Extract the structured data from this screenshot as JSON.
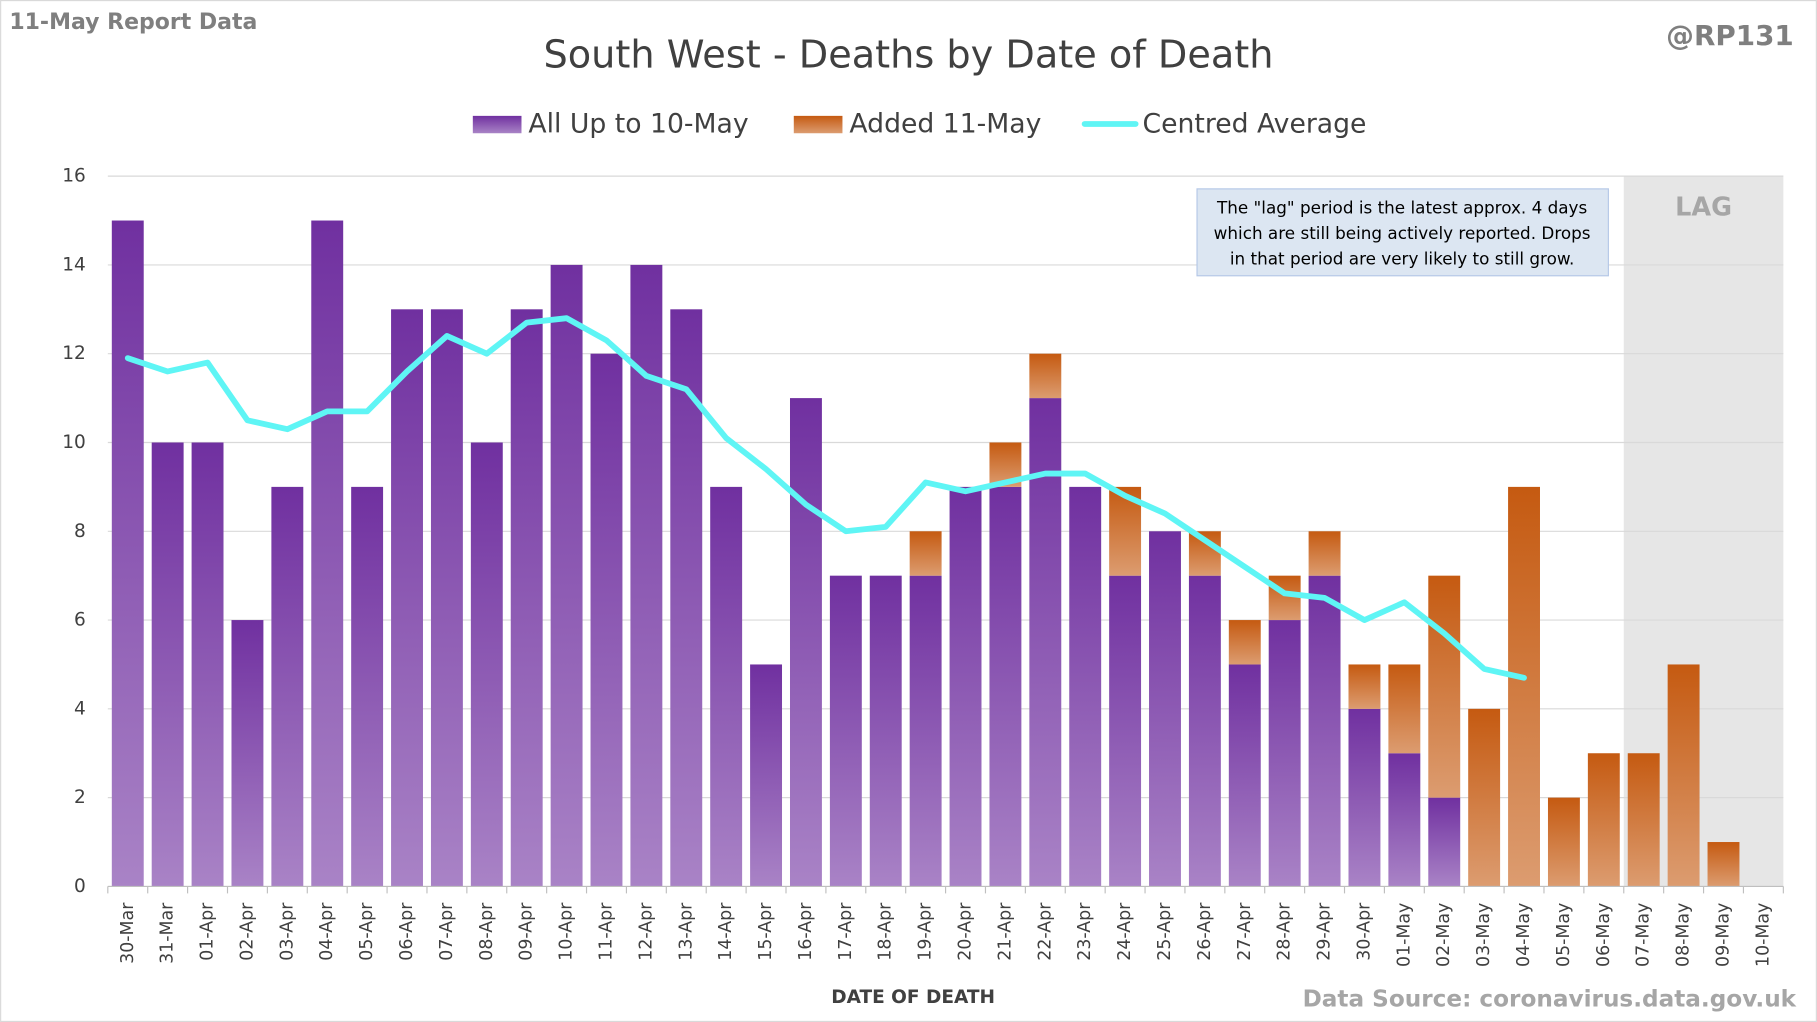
{
  "chart_data": {
    "type": "bar",
    "title": "South West - Deaths by Date of Death",
    "subtitle": "11-May Report Data",
    "handle": "@RP131",
    "source": "Data Source: coronavirus.data.gov.uk",
    "x_label": "DATE OF DEATH",
    "annotation": [
      "The \"lag\" period is the latest approx. 4 days",
      "which are still being actively reported. Drops",
      "in that period are very likely to still grow."
    ],
    "lag": {
      "label": "LAG",
      "from": "07-May"
    },
    "stacked": true,
    "grid": true,
    "categories": [
      "30-Mar",
      "31-Mar",
      "01-Apr",
      "02-Apr",
      "03-Apr",
      "04-Apr",
      "05-Apr",
      "06-Apr",
      "07-Apr",
      "08-Apr",
      "09-Apr",
      "10-Apr",
      "11-Apr",
      "12-Apr",
      "13-Apr",
      "14-Apr",
      "15-Apr",
      "16-Apr",
      "17-Apr",
      "18-Apr",
      "19-Apr",
      "20-Apr",
      "21-Apr",
      "22-Apr",
      "23-Apr",
      "24-Apr",
      "25-Apr",
      "26-Apr",
      "27-Apr",
      "28-Apr",
      "29-Apr",
      "30-Apr",
      "01-May",
      "02-May",
      "03-May",
      "04-May",
      "05-May",
      "06-May",
      "07-May",
      "08-May",
      "09-May",
      "10-May"
    ],
    "series": [
      {
        "name": "All Up to 10-May",
        "color": "#7030a0",
        "values": [
          15,
          10,
          10,
          6,
          9,
          15,
          9,
          13,
          13,
          10,
          13,
          14,
          12,
          14,
          13,
          9,
          5,
          11,
          7,
          7,
          7,
          9,
          9,
          11,
          9,
          7,
          8,
          7,
          5,
          6,
          7,
          4,
          3,
          2,
          0,
          0,
          0,
          0,
          0,
          0,
          0,
          0
        ]
      },
      {
        "name": "Added 11-May",
        "color": "#c55a11",
        "values": [
          0,
          0,
          0,
          0,
          0,
          0,
          0,
          0,
          0,
          0,
          0,
          0,
          0,
          0,
          0,
          0,
          0,
          0,
          0,
          0,
          1,
          0,
          1,
          1,
          0,
          2,
          0,
          1,
          1,
          1,
          1,
          1,
          2,
          5,
          4,
          9,
          2,
          3,
          3,
          5,
          1,
          0
        ]
      },
      {
        "name": "Centred Average",
        "type": "line",
        "color": "#5ff5f5",
        "values": [
          11.9,
          11.6,
          11.8,
          10.5,
          10.3,
          10.7,
          10.7,
          11.6,
          12.4,
          12.0,
          12.7,
          12.8,
          12.3,
          11.5,
          11.2,
          10.1,
          9.4,
          8.6,
          8.0,
          8.1,
          9.1,
          8.9,
          9.1,
          9.3,
          9.3,
          8.8,
          8.4,
          7.8,
          7.2,
          6.6,
          6.5,
          6.0,
          6.4,
          5.7,
          4.9,
          4.7,
          null,
          null,
          null,
          null,
          null,
          null
        ]
      }
    ],
    "ylim": [
      0,
      16
    ],
    "yticks": [
      0,
      2,
      4,
      6,
      8,
      10,
      12,
      14,
      16
    ]
  }
}
